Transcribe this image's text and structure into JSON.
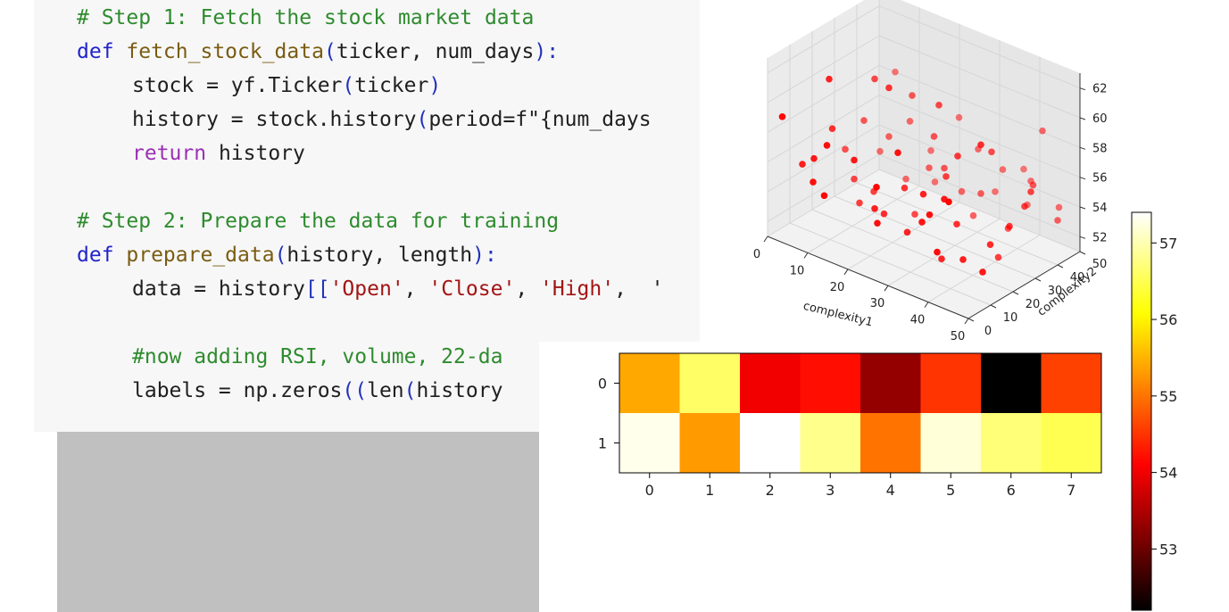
{
  "code": {
    "lines": [
      {
        "indent": 0,
        "tokens": [
          {
            "t": "# Step 1: Fetch the stock market data",
            "c": "comment"
          }
        ]
      },
      {
        "indent": 0,
        "tokens": [
          {
            "t": "def ",
            "c": "keyword"
          },
          {
            "t": "fetch_stock_data",
            "c": "func"
          },
          {
            "t": "(",
            "c": "bracket"
          },
          {
            "t": "ticker, num_days",
            "c": "plain"
          },
          {
            "t": "):",
            "c": "bracket"
          }
        ]
      },
      {
        "indent": 1,
        "tokens": [
          {
            "t": "stock = yf.Ticker",
            "c": "plain"
          },
          {
            "t": "(",
            "c": "bracket"
          },
          {
            "t": "ticker",
            "c": "plain"
          },
          {
            "t": ")",
            "c": "bracket"
          }
        ]
      },
      {
        "indent": 1,
        "tokens": [
          {
            "t": "history = stock.history",
            "c": "plain"
          },
          {
            "t": "(",
            "c": "bracket"
          },
          {
            "t": "period=f\"{num_days",
            "c": "plain"
          }
        ]
      },
      {
        "indent": 1,
        "tokens": [
          {
            "t": "return ",
            "c": "purple"
          },
          {
            "t": "history",
            "c": "plain"
          }
        ]
      },
      {
        "indent": 0,
        "tokens": []
      },
      {
        "indent": 0,
        "tokens": [
          {
            "t": "# Step 2: Prepare the data for training",
            "c": "comment"
          }
        ]
      },
      {
        "indent": 0,
        "tokens": [
          {
            "t": "def ",
            "c": "keyword"
          },
          {
            "t": "prepare_data",
            "c": "func"
          },
          {
            "t": "(",
            "c": "bracket"
          },
          {
            "t": "history, length",
            "c": "plain"
          },
          {
            "t": "):",
            "c": "bracket"
          }
        ]
      },
      {
        "indent": 1,
        "tokens": [
          {
            "t": "data = history",
            "c": "plain"
          },
          {
            "t": "[[",
            "c": "bracket"
          },
          {
            "t": "'Open'",
            "c": "str"
          },
          {
            "t": ", ",
            "c": "plain"
          },
          {
            "t": "'Close'",
            "c": "str"
          },
          {
            "t": ", ",
            "c": "plain"
          },
          {
            "t": "'High'",
            "c": "str"
          },
          {
            "t": ",  '",
            "c": "plain"
          }
        ]
      },
      {
        "indent": 0,
        "tokens": []
      },
      {
        "indent": 1,
        "tokens": [
          {
            "t": "#now adding RSI, volume, 22-da",
            "c": "comment"
          }
        ]
      },
      {
        "indent": 1,
        "tokens": [
          {
            "t": "labels = np.zeros",
            "c": "plain"
          },
          {
            "t": "((",
            "c": "bracket"
          },
          {
            "t": "len",
            "c": "plain"
          },
          {
            "t": "(",
            "c": "bracket"
          },
          {
            "t": "history",
            "c": "plain"
          }
        ]
      }
    ]
  },
  "chart_data": [
    {
      "type": "scatter3d",
      "xlabel": "complexity1",
      "ylabel": "complexity2",
      "xticks": [
        "0",
        "10",
        "20",
        "30",
        "40",
        "50"
      ],
      "yticks": [
        "0",
        "10",
        "20",
        "30",
        "40",
        "50"
      ],
      "zticks": [
        "52",
        "54",
        "56",
        "58",
        "60",
        "62"
      ],
      "color": "#ff0000",
      "points": [
        [
          2,
          3,
          59
        ],
        [
          5,
          20,
          57
        ],
        [
          8,
          40,
          55
        ],
        [
          3,
          45,
          53
        ],
        [
          6,
          10,
          56
        ],
        [
          10,
          30,
          60
        ],
        [
          12,
          5,
          58
        ],
        [
          15,
          48,
          52
        ],
        [
          18,
          22,
          61
        ],
        [
          20,
          12,
          54
        ],
        [
          22,
          35,
          57
        ],
        [
          25,
          42,
          53
        ],
        [
          28,
          8,
          59
        ],
        [
          30,
          26,
          56
        ],
        [
          33,
          46,
          55
        ],
        [
          35,
          15,
          52
        ],
        [
          38,
          32,
          58
        ],
        [
          40,
          4,
          54
        ],
        [
          42,
          20,
          60
        ],
        [
          45,
          38,
          56
        ],
        [
          48,
          10,
          53
        ],
        [
          50,
          28,
          57
        ],
        [
          1,
          33,
          54
        ],
        [
          4,
          50,
          58
        ],
        [
          7,
          15,
          61
        ],
        [
          9,
          25,
          52
        ],
        [
          11,
          44,
          56
        ],
        [
          13,
          2,
          55
        ],
        [
          16,
          36,
          59
        ],
        [
          19,
          18,
          53
        ],
        [
          21,
          48,
          57
        ],
        [
          24,
          6,
          54
        ],
        [
          26,
          30,
          60
        ],
        [
          29,
          40,
          52
        ],
        [
          31,
          14,
          56
        ],
        [
          34,
          24,
          58
        ],
        [
          36,
          50,
          55
        ],
        [
          39,
          9,
          57
        ],
        [
          41,
          34,
          53
        ],
        [
          44,
          44,
          59
        ],
        [
          46,
          17,
          54
        ],
        [
          49,
          27,
          56
        ],
        [
          2,
          12,
          55
        ],
        [
          6,
          28,
          53
        ],
        [
          14,
          48,
          54
        ],
        [
          23,
          20,
          55
        ],
        [
          27,
          14,
          53
        ],
        [
          32,
          38,
          54
        ],
        [
          37,
          6,
          56
        ],
        [
          43,
          26,
          52
        ],
        [
          47,
          46,
          54
        ],
        [
          12,
          26,
          53
        ],
        [
          18,
          40,
          54
        ],
        [
          24,
          36,
          55
        ],
        [
          30,
          48,
          53
        ],
        [
          36,
          20,
          54
        ],
        [
          42,
          12,
          53
        ],
        [
          8,
          6,
          55
        ],
        [
          16,
          10,
          57
        ],
        [
          28,
          44,
          56
        ],
        [
          40,
          46,
          55
        ],
        [
          44,
          2,
          58
        ],
        [
          50,
          40,
          54
        ],
        [
          20,
          30,
          52
        ],
        [
          34,
          8,
          55
        ],
        [
          38,
          48,
          53
        ],
        [
          10,
          44,
          52
        ],
        [
          26,
          2,
          57
        ],
        [
          4,
          36,
          56
        ],
        [
          48,
          22,
          55
        ]
      ]
    },
    {
      "type": "heatmap",
      "xticks": [
        "0",
        "1",
        "2",
        "3",
        "4",
        "5",
        "6",
        "7"
      ],
      "yticks": [
        "0",
        "1"
      ],
      "values": [
        [
          55.4,
          56.6,
          54.0,
          54.2,
          53.3,
          54.5,
          52.2,
          54.6
        ],
        [
          57.3,
          55.3,
          57.5,
          56.8,
          55.0,
          57.2,
          56.7,
          56.5
        ]
      ],
      "vmin": 52.2,
      "vmax": 57.4,
      "colormap": "hot",
      "colorbar_ticks": [
        "53",
        "54",
        "55",
        "56",
        "57"
      ]
    }
  ]
}
